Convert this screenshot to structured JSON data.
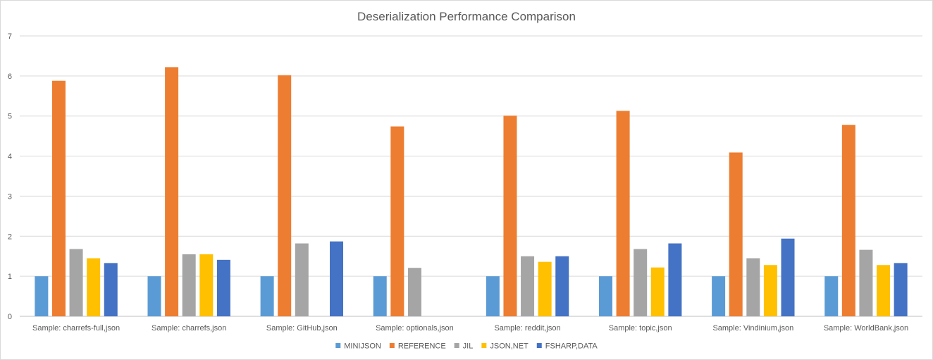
{
  "chart_data": {
    "type": "bar",
    "title": "Deserialization Performance Comparison",
    "xlabel": "",
    "ylabel": "",
    "ylim": [
      0,
      7
    ],
    "yticks": [
      "0",
      "1",
      "2",
      "3",
      "4",
      "5",
      "6",
      "7"
    ],
    "grid": true,
    "legend_position": "bottom",
    "categories": [
      "Sample: charrefs-full,json",
      "Sample: charrefs,json",
      "Sample: GitHub,json",
      "Sample: optionals,json",
      "Sample: reddit,json",
      "Sample: topic,json",
      "Sample: Vindinium,json",
      "Sample: WorldBank,json"
    ],
    "series": [
      {
        "name": "MINIJSON",
        "color": "#5b9bd5",
        "values": [
          1.0,
          1.0,
          1.0,
          1.0,
          1.0,
          1.0,
          1.0,
          1.0
        ]
      },
      {
        "name": "REFERENCE",
        "color": "#ed7d31",
        "values": [
          5.88,
          6.22,
          6.02,
          4.74,
          5.01,
          5.13,
          4.09,
          4.78
        ]
      },
      {
        "name": "JIL",
        "color": "#a5a5a5",
        "values": [
          1.68,
          1.55,
          1.82,
          1.21,
          1.5,
          1.68,
          1.45,
          1.66
        ]
      },
      {
        "name": "JSON,NET",
        "color": "#ffc000",
        "values": [
          1.45,
          1.55,
          null,
          null,
          1.36,
          1.22,
          1.28,
          1.28
        ]
      },
      {
        "name": "FSHARP,DATA",
        "color": "#4472c4",
        "values": [
          1.33,
          1.41,
          1.87,
          null,
          1.5,
          1.82,
          1.94,
          1.33
        ]
      }
    ]
  }
}
